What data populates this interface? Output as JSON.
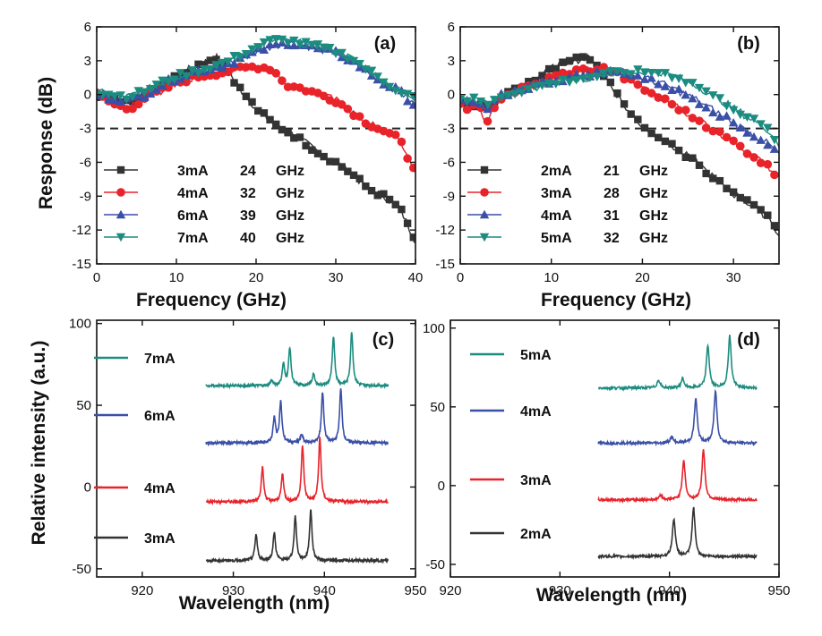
{
  "colors": {
    "black": "#333333",
    "red": "#e8232a",
    "blue": "#3a4fa6",
    "teal": "#1d8c80",
    "dashed": "#222222"
  },
  "shared_labels": {
    "response_ylabel": "Response (dB)",
    "intensity_ylabel": "Relative intensity (a.u.)"
  },
  "chart_data": [
    {
      "panel": "(a)",
      "type": "line",
      "xlabel": "Frequency (GHz)",
      "ylabel": "Response (dB)",
      "xlim": [
        0,
        40
      ],
      "ylim": [
        -15,
        6
      ],
      "xticks": [
        "0",
        "10",
        "20",
        "30",
        "40"
      ],
      "yticks": [
        "6",
        "3",
        "0",
        "-3",
        "-6",
        "-9",
        "-12",
        "-15"
      ],
      "reference_line_y": -3,
      "series": [
        {
          "name": "3mA",
          "bandwidth": "24",
          "unit": "GHz",
          "marker": "square",
          "color": "#333333",
          "x": [
            0,
            2,
            4,
            6,
            8,
            10,
            12,
            14,
            15,
            16,
            18,
            20,
            22,
            24,
            26,
            28,
            30,
            32,
            34,
            36,
            38,
            39,
            40
          ],
          "y": [
            0,
            -0.5,
            -0.5,
            0,
            0.8,
            1.6,
            2.4,
            3.0,
            3.3,
            2.6,
            0.5,
            -1.2,
            -2.5,
            -3.3,
            -4.2,
            -5.2,
            -6.0,
            -7.0,
            -8.3,
            -9.0,
            -10.0,
            -11.5,
            -13.0
          ]
        },
        {
          "name": "4mA",
          "bandwidth": "32",
          "unit": "GHz",
          "marker": "circle",
          "color": "#e8232a",
          "x": [
            0,
            2,
            4,
            6,
            8,
            10,
            12,
            14,
            16,
            18,
            20,
            22,
            23,
            24,
            26,
            28,
            30,
            32,
            34,
            36,
            38,
            39,
            40
          ],
          "y": [
            0,
            -0.8,
            -1.3,
            -0.3,
            0.3,
            1.0,
            1.5,
            1.8,
            2.0,
            2.3,
            2.5,
            2.3,
            1.5,
            0.8,
            0.5,
            0,
            -0.5,
            -1.5,
            -2.5,
            -3.2,
            -4.0,
            -5.5,
            -6.5
          ]
        },
        {
          "name": "6mA",
          "bandwidth": "39",
          "unit": "GHz",
          "marker": "triangle-up",
          "color": "#3a4fa6",
          "x": [
            0,
            2,
            4,
            6,
            8,
            10,
            12,
            14,
            16,
            18,
            20,
            22,
            24,
            26,
            28,
            30,
            32,
            34,
            36,
            38,
            40
          ],
          "y": [
            0,
            -0.3,
            -0.5,
            0,
            0.8,
            1.5,
            2.0,
            2.3,
            2.6,
            3.2,
            3.8,
            4.3,
            4.6,
            4.4,
            4.0,
            3.7,
            3.0,
            2.0,
            1.0,
            0.3,
            -1.0
          ]
        },
        {
          "name": "7mA",
          "bandwidth": "40",
          "unit": "GHz",
          "marker": "triangle-down",
          "color": "#1d8c80",
          "x": [
            0,
            2,
            4,
            6,
            8,
            10,
            12,
            14,
            16,
            18,
            20,
            22,
            24,
            26,
            28,
            30,
            32,
            34,
            36,
            38,
            40
          ],
          "y": [
            0.2,
            0,
            -0.2,
            0.3,
            1.0,
            1.6,
            2.0,
            2.4,
            2.8,
            3.5,
            4.2,
            4.8,
            4.8,
            4.5,
            4.2,
            3.8,
            3.2,
            2.2,
            1.2,
            0.3,
            -0.3
          ]
        }
      ]
    },
    {
      "panel": "(b)",
      "type": "line",
      "xlabel": "Frequency (GHz)",
      "ylabel": "Response (dB)",
      "xlim": [
        0,
        35
      ],
      "ylim": [
        -15,
        6
      ],
      "xticks": [
        "0",
        "10",
        "20",
        "30"
      ],
      "yticks": [
        "6",
        "3",
        "0",
        "-3",
        "-6",
        "-9",
        "-12",
        "-15"
      ],
      "reference_line_y": -3,
      "series": [
        {
          "name": "2mA",
          "bandwidth": "21",
          "unit": "GHz",
          "marker": "square",
          "color": "#333333",
          "x": [
            0,
            1,
            2,
            3,
            4,
            6,
            8,
            10,
            12,
            14,
            15,
            16,
            18,
            20,
            22,
            24,
            26,
            28,
            30,
            32,
            34,
            35
          ],
          "y": [
            -0.8,
            -1.0,
            -0.8,
            -1.3,
            -0.6,
            0.5,
            1.3,
            2.3,
            3.0,
            3.2,
            2.8,
            1.5,
            -1.0,
            -2.8,
            -3.8,
            -5.0,
            -6.0,
            -7.5,
            -8.8,
            -9.8,
            -11.0,
            -12.5
          ]
        },
        {
          "name": "3mA",
          "bandwidth": "28",
          "unit": "GHz",
          "marker": "circle",
          "color": "#e8232a",
          "x": [
            0,
            1,
            2,
            3,
            4,
            6,
            8,
            10,
            12,
            14,
            16,
            18,
            20,
            22,
            24,
            26,
            28,
            30,
            32,
            34,
            35
          ],
          "y": [
            -0.8,
            -1.2,
            -1.0,
            -2.5,
            -0.5,
            0.3,
            0.8,
            1.5,
            2.0,
            2.2,
            2.3,
            1.5,
            0.5,
            -0.3,
            -1.2,
            -2.2,
            -3.2,
            -4.2,
            -5.3,
            -6.5,
            -7.5
          ]
        },
        {
          "name": "4mA",
          "bandwidth": "31",
          "unit": "GHz",
          "marker": "triangle-up",
          "color": "#3a4fa6",
          "x": [
            0,
            1,
            2,
            3,
            4,
            6,
            8,
            10,
            12,
            14,
            16,
            18,
            20,
            22,
            24,
            26,
            28,
            30,
            32,
            34,
            35
          ],
          "y": [
            -0.5,
            -0.8,
            -0.6,
            -1.5,
            -0.3,
            0.3,
            0.8,
            1.2,
            1.5,
            1.8,
            2.0,
            2.0,
            1.5,
            1.0,
            0.3,
            -0.5,
            -1.5,
            -2.5,
            -3.5,
            -4.5,
            -5.3
          ]
        },
        {
          "name": "5mA",
          "bandwidth": "32",
          "unit": "GHz",
          "marker": "triangle-down",
          "color": "#1d8c80",
          "x": [
            0,
            1,
            2,
            3,
            4,
            6,
            8,
            10,
            12,
            14,
            16,
            18,
            20,
            22,
            24,
            26,
            28,
            30,
            32,
            34,
            35
          ],
          "y": [
            -0.3,
            -0.5,
            -0.4,
            -1.0,
            -0.2,
            0.2,
            0.6,
            1.0,
            1.3,
            1.5,
            1.8,
            2.0,
            2.0,
            2.0,
            1.5,
            0.8,
            -0.2,
            -1.2,
            -2.2,
            -3.2,
            -4.5
          ]
        }
      ]
    },
    {
      "panel": "(c)",
      "type": "line",
      "xlabel": "Wavelength (nm)",
      "ylabel": "Relative intensity (a.u.)",
      "xlim": [
        915,
        950
      ],
      "ylim": [
        -55,
        102
      ],
      "xticks": [
        "920",
        "930",
        "940",
        "950"
      ],
      "yticks": [
        "100",
        "50",
        "0",
        "-50"
      ],
      "series": [
        {
          "name": "7mA",
          "color": "#1d8c80",
          "baseline": 62,
          "x_range": [
            927,
            947
          ],
          "peaks": [
            {
              "x": 934.2,
              "h": 3
            },
            {
              "x": 935.5,
              "h": 13
            },
            {
              "x": 936.2,
              "h": 23
            },
            {
              "x": 938.8,
              "h": 7
            },
            {
              "x": 941.0,
              "h": 30
            },
            {
              "x": 943.0,
              "h": 33
            }
          ]
        },
        {
          "name": "6mA",
          "color": "#3a4fa6",
          "baseline": 27,
          "x_range": [
            927,
            947
          ],
          "peaks": [
            {
              "x": 934.5,
              "h": 15
            },
            {
              "x": 935.2,
              "h": 25
            },
            {
              "x": 937.5,
              "h": 5
            },
            {
              "x": 939.8,
              "h": 31
            },
            {
              "x": 941.8,
              "h": 33
            }
          ]
        },
        {
          "name": "4mA",
          "color": "#e8232a",
          "baseline": -9,
          "x_range": [
            927,
            947
          ],
          "peaks": [
            {
              "x": 933.2,
              "h": 21
            },
            {
              "x": 935.4,
              "h": 17
            },
            {
              "x": 937.6,
              "h": 34
            },
            {
              "x": 939.5,
              "h": 39
            }
          ]
        },
        {
          "name": "3mA",
          "color": "#333333",
          "baseline": -45,
          "x_range": [
            927,
            947
          ],
          "peaks": [
            {
              "x": 932.5,
              "h": 16
            },
            {
              "x": 934.5,
              "h": 17
            },
            {
              "x": 936.8,
              "h": 27
            },
            {
              "x": 938.5,
              "h": 31
            }
          ]
        }
      ]
    },
    {
      "panel": "(d)",
      "type": "line",
      "xlabel": "Wavelength (nm)",
      "ylabel": "Relative intensity (a.u.)",
      "xlim": [
        920,
        950
      ],
      "ylim": [
        -58,
        105
      ],
      "xticks": [
        "920",
        "930",
        "940",
        "950"
      ],
      "yticks": [
        "100",
        "50",
        "0",
        "-50"
      ],
      "series": [
        {
          "name": "5mA",
          "color": "#1d8c80",
          "baseline": 62,
          "x_range": [
            933.5,
            948
          ],
          "peaks": [
            {
              "x": 939.0,
              "h": 5
            },
            {
              "x": 941.2,
              "h": 6
            },
            {
              "x": 943.5,
              "h": 27
            },
            {
              "x": 945.5,
              "h": 33
            }
          ]
        },
        {
          "name": "4mA",
          "color": "#3a4fa6",
          "baseline": 27,
          "x_range": [
            933.5,
            948
          ],
          "peaks": [
            {
              "x": 940.2,
              "h": 4
            },
            {
              "x": 942.4,
              "h": 28
            },
            {
              "x": 944.2,
              "h": 33
            }
          ]
        },
        {
          "name": "3mA",
          "color": "#e8232a",
          "baseline": -9,
          "x_range": [
            933.5,
            948
          ],
          "peaks": [
            {
              "x": 939.2,
              "h": 3
            },
            {
              "x": 941.3,
              "h": 25
            },
            {
              "x": 943.1,
              "h": 32
            }
          ]
        },
        {
          "name": "2mA",
          "color": "#333333",
          "baseline": -45,
          "x_range": [
            933.5,
            948
          ],
          "peaks": [
            {
              "x": 940.4,
              "h": 24
            },
            {
              "x": 942.2,
              "h": 31
            }
          ]
        }
      ]
    }
  ]
}
